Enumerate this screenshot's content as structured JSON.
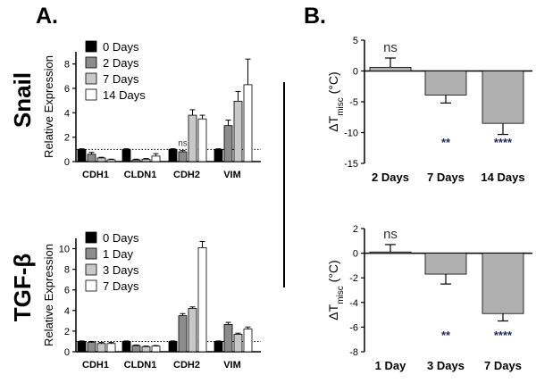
{
  "panel_labels": [
    "A.",
    "B."
  ],
  "row_labels": [
    "Snail",
    "TGF-β"
  ],
  "colors": {
    "black": "#000000",
    "dark_gray": "#8c8c8c",
    "light_gray": "#c8c8c8",
    "white": "#ffffff",
    "bar_B": "#b0b0b0",
    "star_color": "#1f2a5a"
  },
  "chart_data": [
    {
      "id": "snail_expression",
      "type": "bar",
      "panel": "A.",
      "row_label": "Snail",
      "ylabel": "Relative Expression",
      "ylim": [
        0,
        9
      ],
      "yticks": [
        0,
        2,
        4,
        6,
        8
      ],
      "categories": [
        "CDH1",
        "CLDN1",
        "CDH2",
        "VIM"
      ],
      "reference_line": 1,
      "series": [
        {
          "name": "0 Days",
          "values": [
            1.0,
            1.0,
            1.0,
            1.0
          ],
          "errors": [
            0.05,
            0.05,
            0.05,
            0.05
          ]
        },
        {
          "name": "2 Days",
          "values": [
            0.6,
            0.15,
            0.8,
            2.95
          ],
          "errors": [
            0.15,
            0.05,
            0.1,
            0.45
          ]
        },
        {
          "name": "7 Days",
          "values": [
            0.3,
            0.2,
            3.8,
            4.95
          ],
          "errors": [
            0.05,
            0.05,
            0.45,
            0.8
          ]
        },
        {
          "name": "14 Days",
          "values": [
            0.15,
            0.45,
            3.5,
            6.3
          ],
          "errors": [
            0.05,
            0.2,
            0.3,
            2.1
          ]
        }
      ],
      "annotations": [
        {
          "text": "ns",
          "category": "CDH2",
          "series": "2 Days"
        }
      ]
    },
    {
      "id": "tgfb_expression",
      "type": "bar",
      "panel": "A.",
      "row_label": "TGF-β",
      "ylabel": "Relative Expression",
      "ylim": [
        0,
        11
      ],
      "yticks": [
        0,
        2,
        4,
        6,
        8,
        10
      ],
      "categories": [
        "CDH1",
        "CLDN1",
        "CDH2",
        "VIM"
      ],
      "reference_line": 1,
      "series": [
        {
          "name": "0 Days",
          "values": [
            1.0,
            1.0,
            1.0,
            1.0
          ],
          "errors": [
            0.05,
            0.05,
            0.05,
            0.05
          ]
        },
        {
          "name": "1 Day",
          "values": [
            0.9,
            0.6,
            3.5,
            2.65
          ],
          "errors": [
            0.1,
            0.05,
            0.2,
            0.2
          ]
        },
        {
          "name": "3 Days",
          "values": [
            0.8,
            0.5,
            4.2,
            1.7
          ],
          "errors": [
            0.1,
            0.05,
            0.15,
            0.1
          ]
        },
        {
          "name": "7 Days",
          "values": [
            0.8,
            0.55,
            10.1,
            2.2
          ],
          "errors": [
            0.1,
            0.05,
            0.6,
            0.2
          ]
        }
      ],
      "annotations": []
    },
    {
      "id": "snail_tmisc",
      "type": "bar",
      "panel": "B.",
      "ylabel_main": "ΔT",
      "ylabel_sub": "misc",
      "ylabel_unit": " (°C)",
      "ylim": [
        -15,
        5
      ],
      "yticks": [
        -15,
        -10,
        -5,
        0,
        5
      ],
      "categories": [
        "2 Days",
        "7 Days",
        "14 Days"
      ],
      "values": [
        0.6,
        -3.9,
        -8.5
      ],
      "errors": [
        1.5,
        1.3,
        1.8
      ],
      "significance": [
        "ns",
        "**",
        "****"
      ]
    },
    {
      "id": "tgfb_tmisc",
      "type": "bar",
      "panel": "B.",
      "ylabel_main": "ΔT",
      "ylabel_sub": "misc",
      "ylabel_unit": " (°C)",
      "ylim": [
        -8,
        2
      ],
      "yticks": [
        -8,
        -6,
        -4,
        -2,
        0,
        2
      ],
      "categories": [
        "1 Day",
        "3 Days",
        "7 Days"
      ],
      "values": [
        0.1,
        -1.7,
        -4.9
      ],
      "errors": [
        0.6,
        0.8,
        0.6
      ],
      "significance": [
        "ns",
        "**",
        "****"
      ]
    }
  ]
}
